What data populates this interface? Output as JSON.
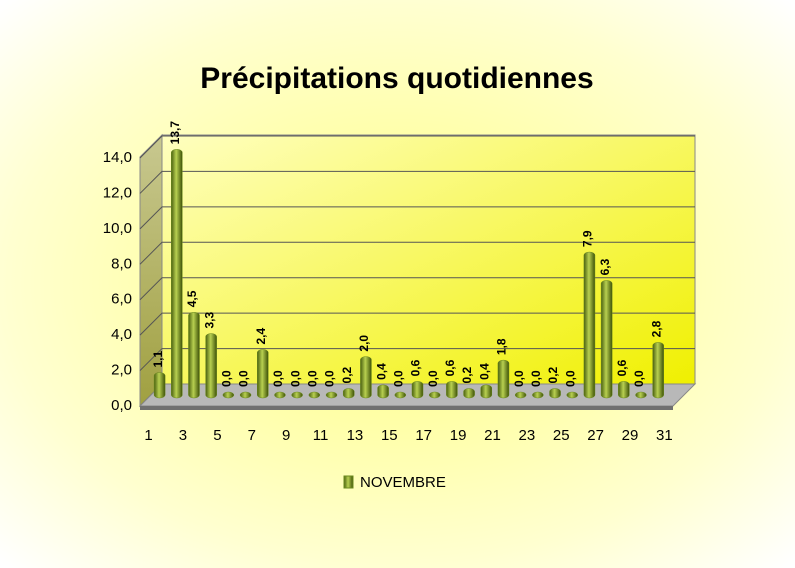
{
  "chart_data": {
    "type": "bar",
    "title": "Précipitations quotidiennes",
    "categories": [
      "1",
      null,
      "3",
      null,
      "5",
      null,
      "7",
      null,
      "9",
      null,
      "11",
      null,
      "13",
      null,
      "15",
      null,
      "17",
      null,
      "19",
      null,
      "21",
      null,
      "23",
      null,
      "25",
      null,
      "27",
      null,
      "29",
      null,
      "31"
    ],
    "series": [
      {
        "name": "NOVEMBRE",
        "color": "#6b8a1e",
        "values": [
          1.1,
          13.7,
          4.5,
          3.3,
          0,
          0,
          2.4,
          0,
          0,
          0,
          0,
          0.2,
          2.0,
          0.4,
          0,
          0.6,
          0,
          0.6,
          0.2,
          0.4,
          1.8,
          0,
          0,
          0.2,
          0,
          7.9,
          6.3,
          0.6,
          0,
          2.8,
          null
        ],
        "value_labels": [
          "1,1",
          "13,7",
          "4,5",
          "3,3",
          "0,0",
          "0,0",
          "2,4",
          "0,0",
          "0,0",
          "0,0",
          "0,0",
          "0,2",
          "2,0",
          "0,4",
          "0,0",
          "0,6",
          "0,0",
          "0,6",
          "0,2",
          "0,4",
          "1,8",
          "0,0",
          "0,0",
          "0,2",
          "0,0",
          "7,9",
          "6,3",
          "0,6",
          "0,0",
          "2,8",
          null
        ]
      }
    ],
    "ylim": [
      0,
      14
    ],
    "yticks": [
      {
        "value": 0,
        "label": "0,0"
      },
      {
        "value": 2,
        "label": "2,0"
      },
      {
        "value": 4,
        "label": "4,0"
      },
      {
        "value": 6,
        "label": "6,0"
      },
      {
        "value": 8,
        "label": "8,0"
      },
      {
        "value": 10,
        "label": "10,0"
      },
      {
        "value": 12,
        "label": "12,0"
      },
      {
        "value": 14,
        "label": "14,0"
      }
    ],
    "grid": true,
    "legend": "bottom"
  }
}
